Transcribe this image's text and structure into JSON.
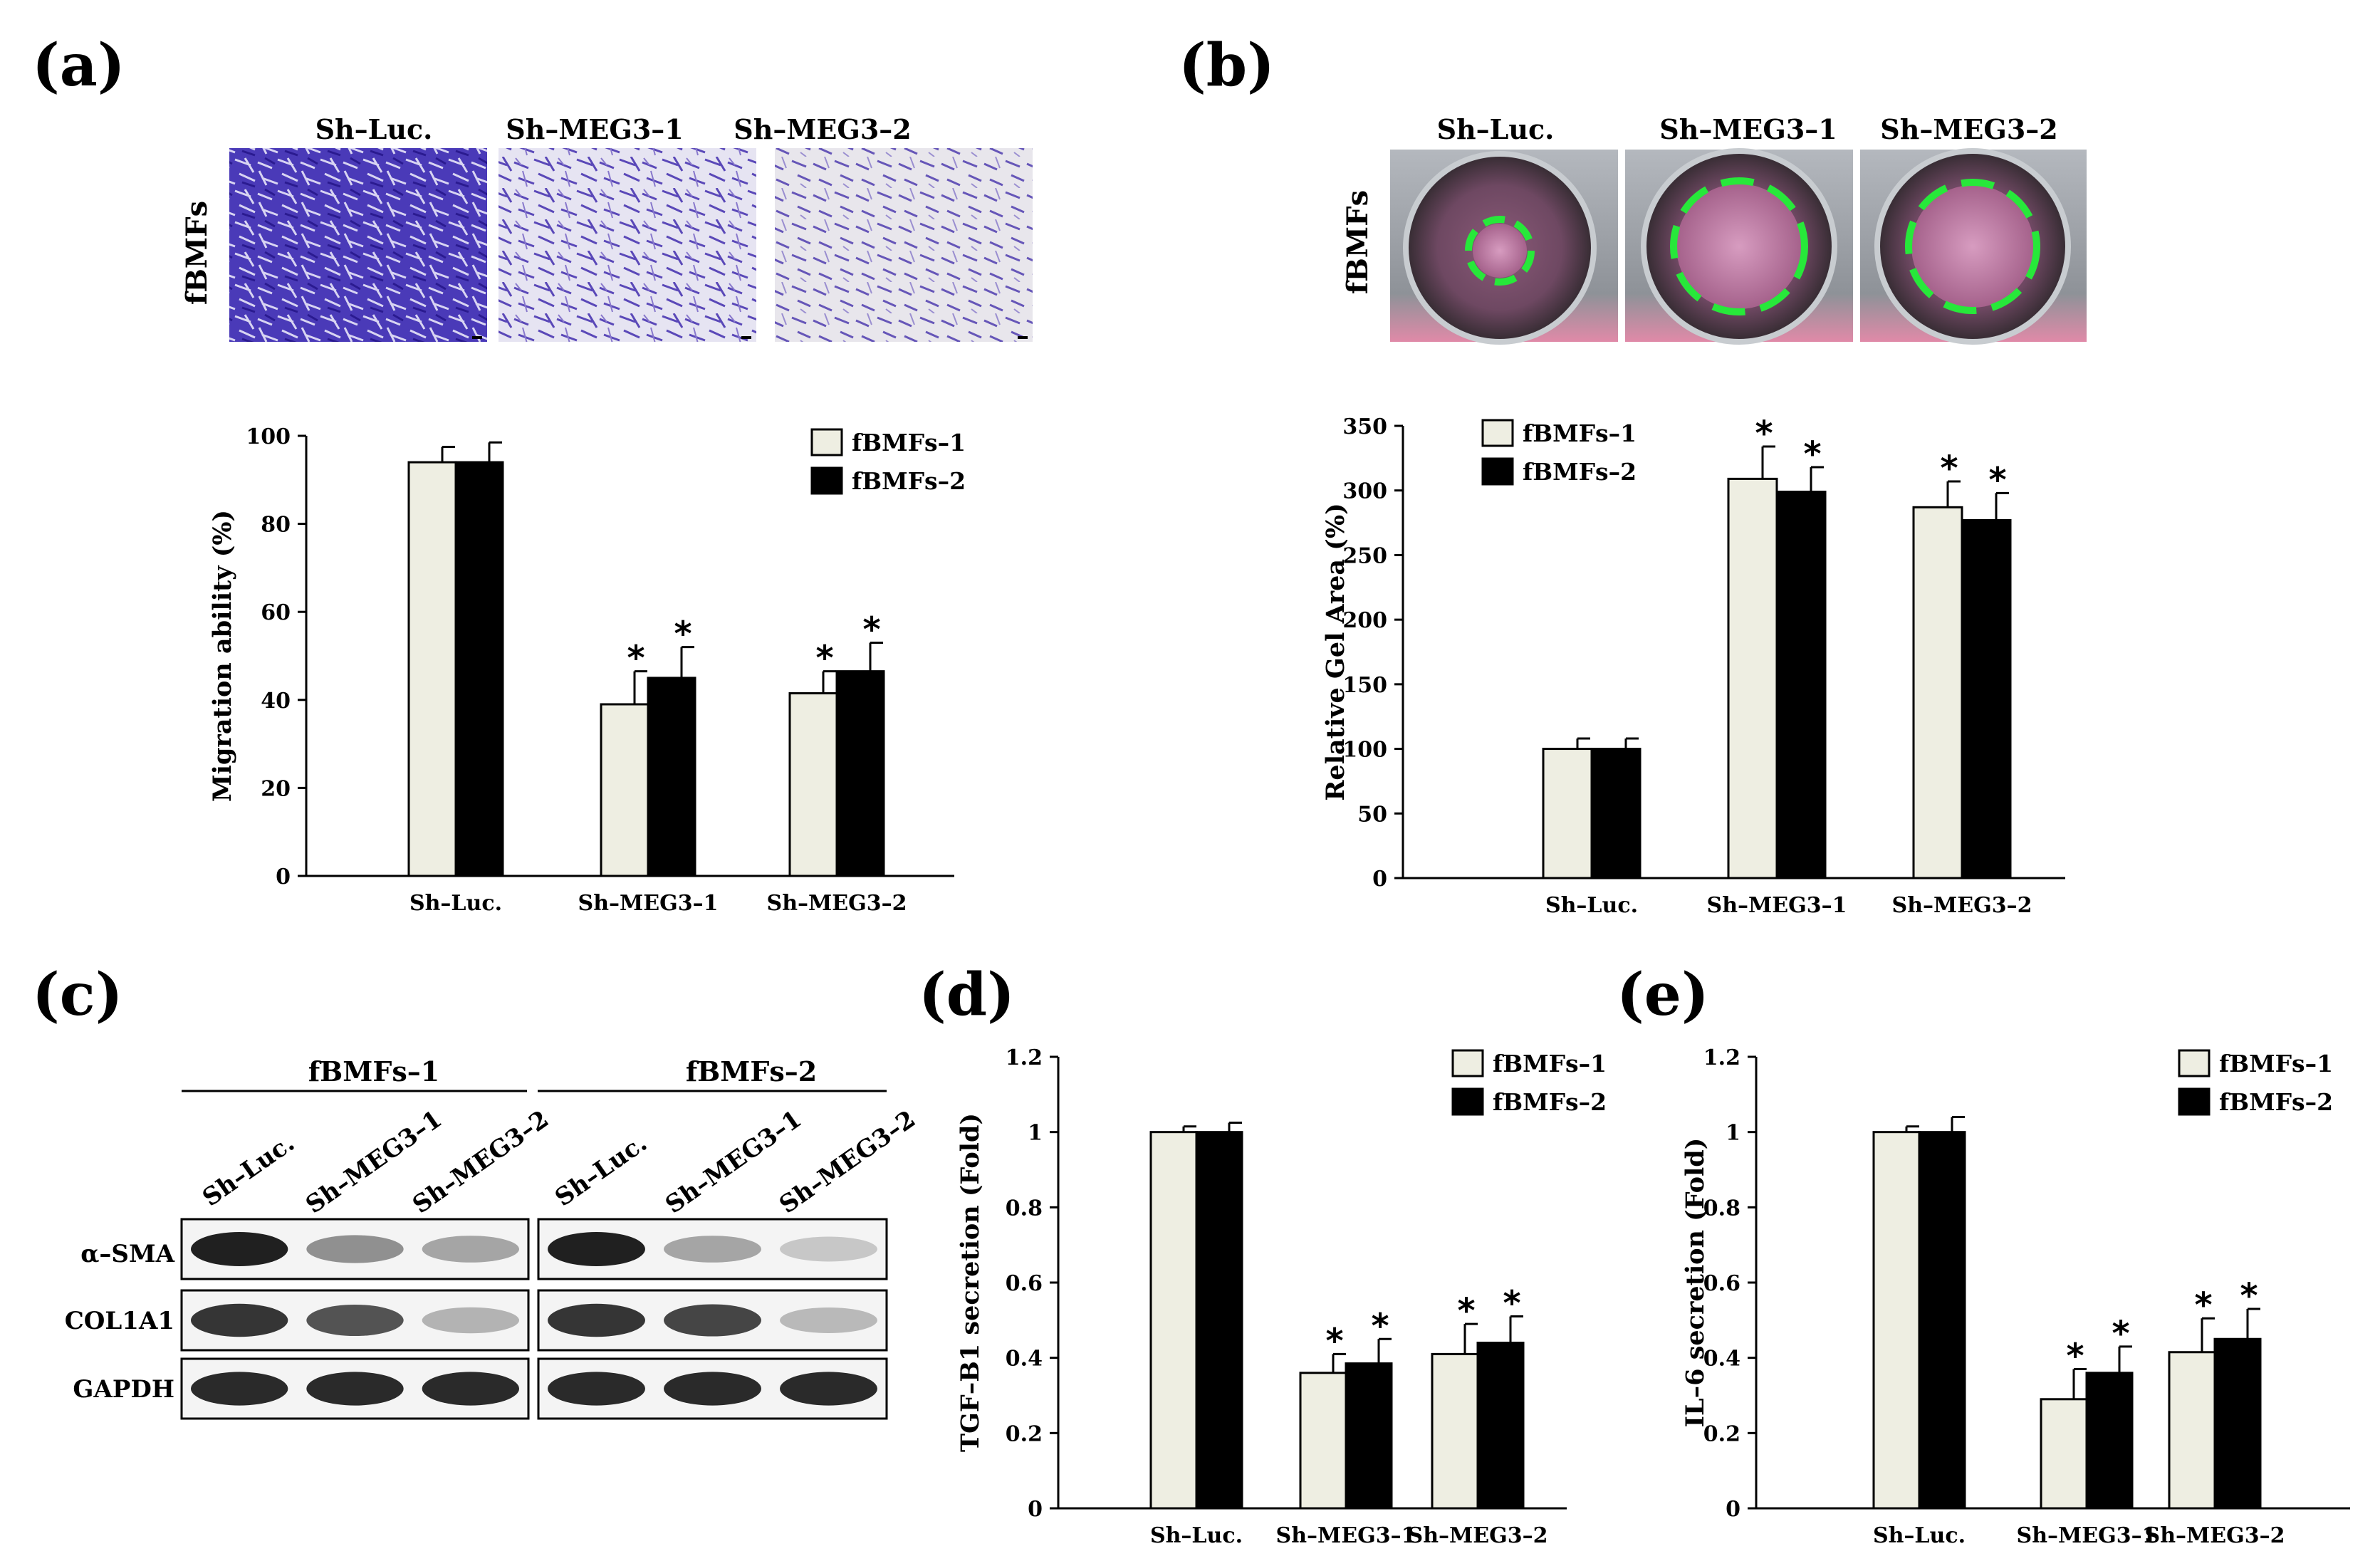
{
  "panel_labels": [
    "(a)",
    "(b)",
    "(c)",
    "(d)",
    "(e)"
  ],
  "panel_a": {
    "headers": [
      "Sh–Luc.",
      "Sh–MEG3–1",
      "Sh–MEG3–2"
    ],
    "side_label": "fBMFs"
  },
  "panel_b": {
    "headers": [
      "Sh–Luc.",
      "Sh–MEG3–1",
      "Sh–MEG3–2"
    ],
    "side_label": "fBMFs"
  },
  "panel_c": {
    "group_labels": [
      "fBMFs–1",
      "fBMFs–2"
    ],
    "lane_labels": [
      "Sh–Luc.",
      "Sh–MEG3–1",
      "Sh–MEG3–2"
    ],
    "row_labels": [
      "α–SMA",
      "COL1A1",
      "GAPDH"
    ],
    "band_intensity": {
      "alpha_sma": [
        [
          1.0,
          0.45,
          0.35
        ],
        [
          1.0,
          0.35,
          0.18
        ]
      ],
      "col1a1": [
        [
          0.9,
          0.75,
          0.28
        ],
        [
          0.9,
          0.82,
          0.25
        ]
      ],
      "gapdh": [
        [
          0.95,
          0.95,
          0.95
        ],
        [
          0.95,
          0.95,
          0.95
        ]
      ]
    }
  },
  "colors": {
    "series1": "#eeeee2",
    "series2": "#000000"
  },
  "chart_data": [
    {
      "type": "bar",
      "panel": "a",
      "categories": [
        "Sh–Luc.",
        "Sh–MEG3–1",
        "Sh–MEG3–2"
      ],
      "series": [
        {
          "name": "fBMFs–1",
          "values": [
            94,
            39,
            41.5
          ],
          "errors": [
            3.5,
            7.5,
            5
          ],
          "significant": [
            false,
            true,
            true
          ]
        },
        {
          "name": "fBMFs–2",
          "values": [
            94,
            45,
            46.5
          ],
          "errors": [
            4.5,
            7,
            6.5
          ],
          "significant": [
            false,
            true,
            true
          ]
        }
      ],
      "ylabel": "Migration ability (%)",
      "ylim": [
        0,
        100
      ],
      "yticks": [
        0,
        20,
        40,
        60,
        80,
        100
      ],
      "ytick_labels": [
        "0",
        "20",
        "40",
        "60",
        "80",
        "100"
      ]
    },
    {
      "type": "bar",
      "panel": "b",
      "categories": [
        "Sh–Luc.",
        "Sh–MEG3–1",
        "Sh–MEG3–2"
      ],
      "series": [
        {
          "name": "fBMFs–1",
          "values": [
            100,
            309,
            287
          ],
          "errors": [
            8,
            25,
            20
          ],
          "significant": [
            false,
            true,
            true
          ]
        },
        {
          "name": "fBMFs–2",
          "values": [
            100,
            299,
            277
          ],
          "errors": [
            8,
            19,
            21
          ],
          "significant": [
            false,
            true,
            true
          ]
        }
      ],
      "ylabel": "Relative Gel Area (%)",
      "ylim": [
        0,
        350
      ],
      "yticks": [
        0,
        50,
        100,
        150,
        200,
        250,
        300,
        350
      ],
      "ytick_labels": [
        "0",
        "50",
        "100",
        "150",
        "200",
        "250",
        "300",
        "350"
      ]
    },
    {
      "type": "bar",
      "panel": "d",
      "categories": [
        "Sh–Luc.",
        "Sh–MEG3–1",
        "Sh–MEG3–2"
      ],
      "series": [
        {
          "name": "fBMFs–1",
          "values": [
            1.0,
            0.36,
            0.41
          ],
          "errors": [
            0.015,
            0.05,
            0.08
          ],
          "significant": [
            false,
            true,
            true
          ]
        },
        {
          "name": "fBMFs–2",
          "values": [
            1.0,
            0.385,
            0.44
          ],
          "errors": [
            0.025,
            0.065,
            0.07
          ],
          "significant": [
            false,
            true,
            true
          ]
        }
      ],
      "ylabel": "TGF–B1 secretion (Fold)",
      "ylim": [
        0,
        1.2
      ],
      "yticks": [
        0,
        0.2,
        0.4,
        0.6,
        0.8,
        1,
        1.2
      ],
      "ytick_labels": [
        "0",
        "0.2",
        "0.4",
        "0.6",
        "0.8",
        "1",
        "1.2"
      ]
    },
    {
      "type": "bar",
      "panel": "e",
      "categories": [
        "Sh–Luc.",
        "Sh–MEG3–1",
        "Sh–MEG3–2"
      ],
      "series": [
        {
          "name": "fBMFs–1",
          "values": [
            1.0,
            0.29,
            0.415
          ],
          "errors": [
            0.015,
            0.08,
            0.09
          ],
          "significant": [
            false,
            true,
            true
          ]
        },
        {
          "name": "fBMFs–2",
          "values": [
            1.0,
            0.36,
            0.45
          ],
          "errors": [
            0.04,
            0.07,
            0.08
          ],
          "significant": [
            false,
            true,
            true
          ]
        }
      ],
      "ylabel": "IL–6 secretion (Fold)",
      "ylim": [
        0,
        1.2
      ],
      "yticks": [
        0,
        0.2,
        0.4,
        0.6,
        0.8,
        1,
        1.2
      ],
      "ytick_labels": [
        "0",
        "0.2",
        "0.4",
        "0.6",
        "0.8",
        "1",
        "1.2"
      ]
    }
  ]
}
